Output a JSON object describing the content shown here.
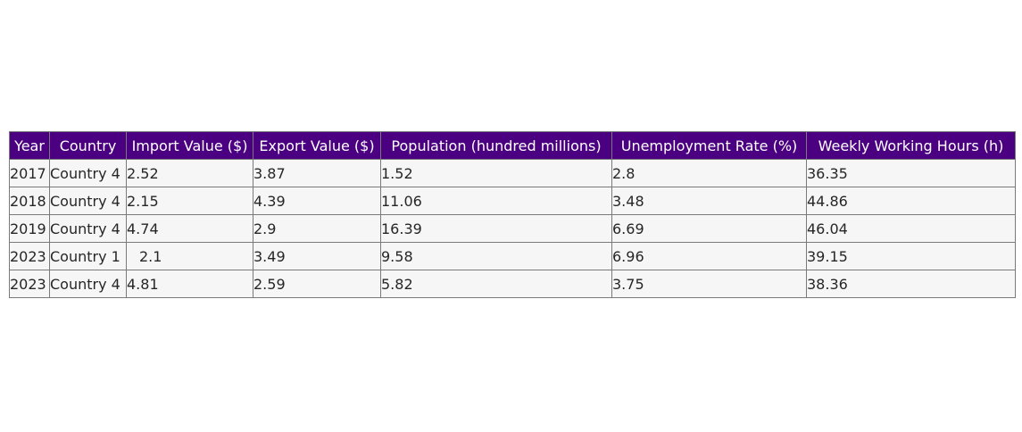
{
  "chart_data": {
    "type": "table",
    "columns": [
      "Year",
      "Country",
      "Import Value ($)",
      "Export Value ($)",
      "Population (hundred millions)",
      "Unemployment Rate (%)",
      "Weekly Working Hours (h)"
    ],
    "rows": [
      [
        "2017",
        "Country 4",
        "2.52",
        "3.87",
        "1.52",
        "2.8",
        "36.35"
      ],
      [
        "2018",
        "Country 4",
        "2.15",
        "4.39",
        "11.06",
        "3.48",
        "44.86"
      ],
      [
        "2019",
        "Country 4",
        "4.74",
        "2.9",
        "16.39",
        "6.69",
        "46.04"
      ],
      [
        "2023",
        "Country 1",
        "2.1",
        "3.49",
        "9.58",
        "6.96",
        "39.15"
      ],
      [
        "2023",
        "Country 4",
        "4.81",
        "2.59",
        "5.82",
        "3.75",
        "38.36"
      ]
    ],
    "header_color": "#4b0082",
    "cell_color": "#f6f6f6",
    "border_color": "#7a7a7a"
  }
}
